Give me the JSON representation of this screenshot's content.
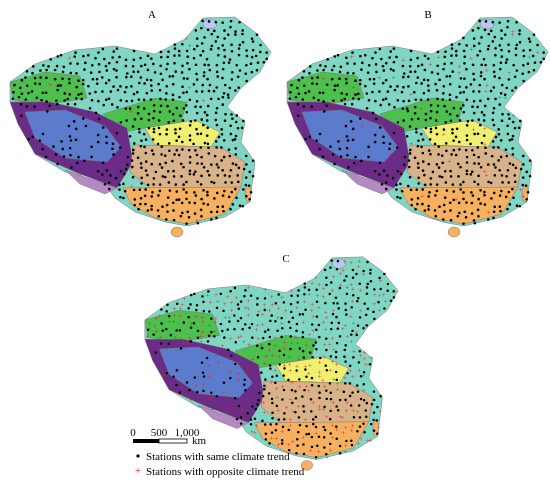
{
  "panels": [
    {
      "label": "A"
    },
    {
      "label": "B"
    },
    {
      "label": "C"
    }
  ],
  "scale_bar": {
    "ticks": [
      "0",
      "500",
      "1,000"
    ],
    "unit": "km"
  },
  "legend": [
    {
      "label": "Stations with same climate trend"
    },
    {
      "label": "Stations with opposite climate trend"
    }
  ]
}
